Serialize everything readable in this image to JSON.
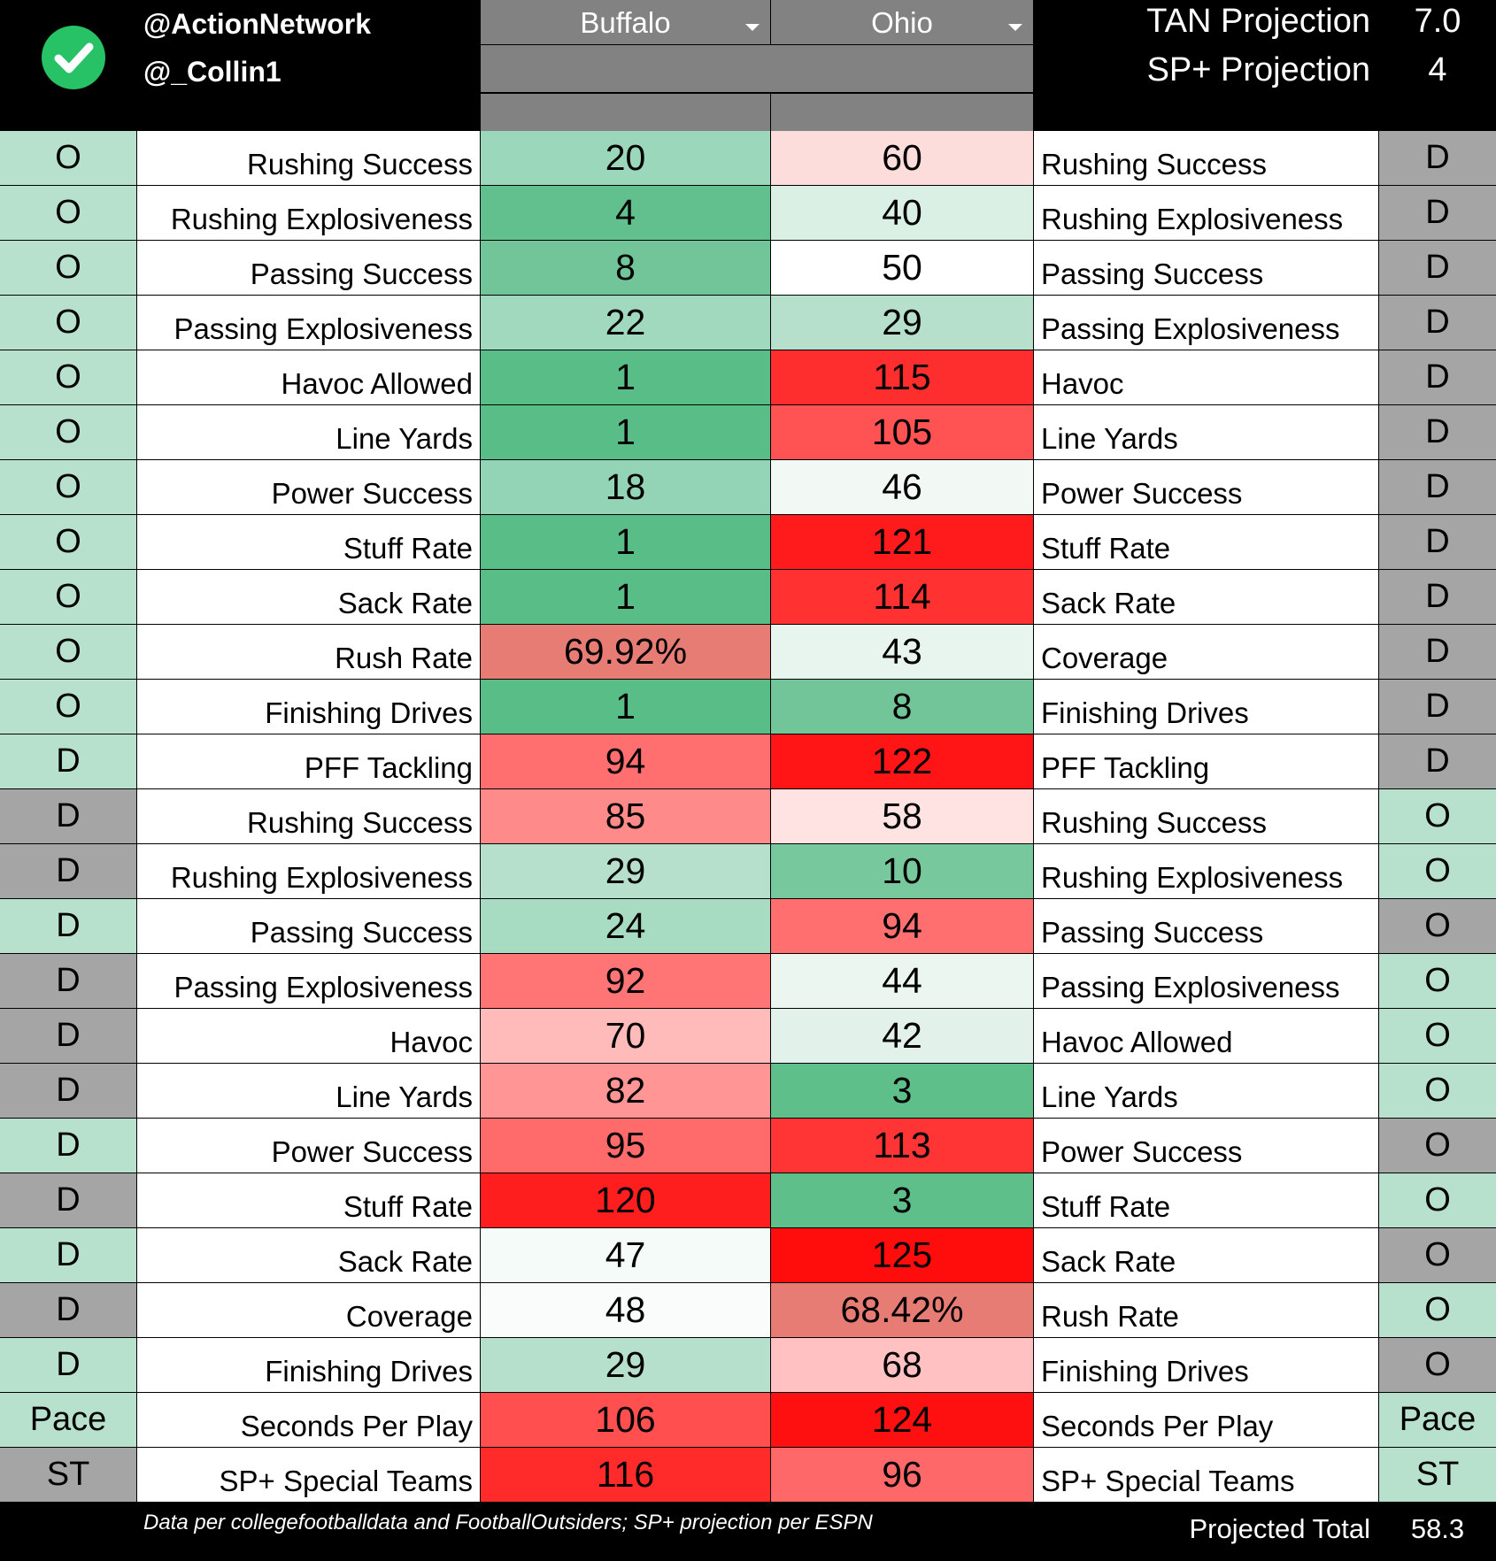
{
  "header": {
    "handle_primary": "@ActionNetwork",
    "handle_secondary": "@_Collin1",
    "team_left": "Buffalo",
    "team_right": "Ohio",
    "tan_label": "TAN Projection",
    "tan_value": "7.0",
    "sp_label": "SP+ Projection",
    "sp_value": "4"
  },
  "colors": {
    "light_green": "#b7e1cd",
    "side_gray": "#a5a5a5",
    "check_green": "#27c265",
    "header_gray": "#828282"
  },
  "rows": [
    {
      "side": "O",
      "side_color": "#b7e1cd",
      "left_label": "Rushing Success",
      "v1": "20",
      "v1_color": "#9bd7bb",
      "v2": "60",
      "v2_color": "#fddcdc",
      "right_label": "Rushing Success",
      "rside": "D",
      "rside_color": "#a5a5a5"
    },
    {
      "side": "O",
      "side_color": "#b7e1cd",
      "left_label": "Rushing Explosiveness",
      "v1": "4",
      "v1_color": "#62c08e",
      "v2": "40",
      "v2_color": "#dbf0e5",
      "right_label": "Rushing Explosiveness",
      "rside": "D",
      "rside_color": "#a5a5a5"
    },
    {
      "side": "O",
      "side_color": "#b7e1cd",
      "left_label": "Passing Success",
      "v1": "8",
      "v1_color": "#71c598",
      "v2": "50",
      "v2_color": "#ffffff",
      "right_label": "Passing Success",
      "rside": "D",
      "rside_color": "#a5a5a5"
    },
    {
      "side": "O",
      "side_color": "#b7e1cd",
      "left_label": "Passing Explosiveness",
      "v1": "22",
      "v1_color": "#a1d9bf",
      "v2": "29",
      "v2_color": "#b6e0cb",
      "right_label": "Passing Explosiveness",
      "rside": "D",
      "rside_color": "#a5a5a5"
    },
    {
      "side": "O",
      "side_color": "#b7e1cd",
      "left_label": "Havoc Allowed",
      "v1": "1",
      "v1_color": "#59bd88",
      "v2": "115",
      "v2_color": "#ff2e2e",
      "right_label": "Havoc",
      "rside": "D",
      "rside_color": "#a5a5a5"
    },
    {
      "side": "O",
      "side_color": "#b7e1cd",
      "left_label": "Line Yards",
      "v1": "1",
      "v1_color": "#59bd88",
      "v2": "105",
      "v2_color": "#ff5252",
      "right_label": "Line Yards",
      "rside": "D",
      "rside_color": "#a5a5a5"
    },
    {
      "side": "O",
      "side_color": "#b7e1cd",
      "left_label": "Power Success",
      "v1": "18",
      "v1_color": "#94d4b6",
      "v2": "46",
      "v2_color": "#f2f9f5",
      "right_label": "Power Success",
      "rside": "D",
      "rside_color": "#a5a5a5"
    },
    {
      "side": "O",
      "side_color": "#b7e1cd",
      "left_label": "Stuff Rate",
      "v1": "1",
      "v1_color": "#59bd88",
      "v2": "121",
      "v2_color": "#ff1b1b",
      "right_label": "Stuff Rate",
      "rside": "D",
      "rside_color": "#a5a5a5"
    },
    {
      "side": "O",
      "side_color": "#b7e1cd",
      "left_label": "Sack Rate",
      "v1": "1",
      "v1_color": "#59bd88",
      "v2": "114",
      "v2_color": "#ff3131",
      "right_label": "Sack Rate",
      "rside": "D",
      "rside_color": "#a5a5a5"
    },
    {
      "side": "O",
      "side_color": "#b7e1cd",
      "left_label": "Rush Rate",
      "v1": "69.92%",
      "v1_color": "#e67c73",
      "v2": "43",
      "v2_color": "#e8f5ee",
      "right_label": "Coverage",
      "rside": "D",
      "rside_color": "#a5a5a5"
    },
    {
      "side": "O",
      "side_color": "#b7e1cd",
      "left_label": "Finishing Drives",
      "v1": "1",
      "v1_color": "#59bd88",
      "v2": "8",
      "v2_color": "#71c598",
      "right_label": "Finishing Drives",
      "rside": "D",
      "rside_color": "#a5a5a5"
    },
    {
      "side": "D",
      "side_color": "#b7e1cd",
      "left_label": "PFF Tackling",
      "v1": "94",
      "v1_color": "#ff6f6f",
      "v2": "122",
      "v2_color": "#ff1515",
      "right_label": "PFF Tackling",
      "rside": "D",
      "rside_color": "#a5a5a5"
    },
    {
      "side": "D",
      "side_color": "#a5a5a5",
      "left_label": "Rushing Success",
      "v1": "85",
      "v1_color": "#ff8a8a",
      "v2": "58",
      "v2_color": "#ffe3e3",
      "right_label": "Rushing Success",
      "rside": "O",
      "rside_color": "#b7e1cd"
    },
    {
      "side": "D",
      "side_color": "#a5a5a5",
      "left_label": "Rushing Explosiveness",
      "v1": "29",
      "v1_color": "#b6e0cb",
      "v2": "10",
      "v2_color": "#78c89d",
      "right_label": "Rushing Explosiveness",
      "rside": "O",
      "rside_color": "#b7e1cd"
    },
    {
      "side": "D",
      "side_color": "#b7e1cd",
      "left_label": "Passing Success",
      "v1": "24",
      "v1_color": "#a7dbc2",
      "v2": "94",
      "v2_color": "#ff6f6f",
      "right_label": "Passing Success",
      "rside": "O",
      "rside_color": "#a5a5a5"
    },
    {
      "side": "D",
      "side_color": "#a5a5a5",
      "left_label": "Passing Explosiveness",
      "v1": "92",
      "v1_color": "#ff7575",
      "v2": "44",
      "v2_color": "#ebf6f0",
      "right_label": "Passing Explosiveness",
      "rside": "O",
      "rside_color": "#b7e1cd"
    },
    {
      "side": "D",
      "side_color": "#a5a5a5",
      "left_label": "Havoc",
      "v1": "70",
      "v1_color": "#ffbaba",
      "v2": "42",
      "v2_color": "#e2f2ea",
      "right_label": "Havoc Allowed",
      "rside": "O",
      "rside_color": "#b7e1cd"
    },
    {
      "side": "D",
      "side_color": "#a5a5a5",
      "left_label": "Line Yards",
      "v1": "82",
      "v1_color": "#ff9595",
      "v2": "3",
      "v2_color": "#5ebf8b",
      "right_label": "Line Yards",
      "rside": "O",
      "rside_color": "#b7e1cd"
    },
    {
      "side": "D",
      "side_color": "#b7e1cd",
      "left_label": "Power Success",
      "v1": "95",
      "v1_color": "#ff6b6b",
      "v2": "113",
      "v2_color": "#ff3535",
      "right_label": "Power Success",
      "rside": "O",
      "rside_color": "#a5a5a5"
    },
    {
      "side": "D",
      "side_color": "#a5a5a5",
      "left_label": "Stuff Rate",
      "v1": "120",
      "v1_color": "#ff1e1e",
      "v2": "3",
      "v2_color": "#5ebf8b",
      "right_label": "Stuff Rate",
      "rside": "O",
      "rside_color": "#b7e1cd"
    },
    {
      "side": "D",
      "side_color": "#b7e1cd",
      "left_label": "Sack Rate",
      "v1": "47",
      "v1_color": "#f5fbf8",
      "v2": "125",
      "v2_color": "#ff0d0d",
      "right_label": "Sack Rate",
      "rside": "O",
      "rside_color": "#a5a5a5"
    },
    {
      "side": "D",
      "side_color": "#a5a5a5",
      "left_label": "Coverage",
      "v1": "48",
      "v1_color": "#f9fcfa",
      "v2": "68.42%",
      "v2_color": "#e67c73",
      "right_label": "Rush Rate",
      "rside": "O",
      "rside_color": "#b7e1cd"
    },
    {
      "side": "D",
      "side_color": "#b7e1cd",
      "left_label": "Finishing Drives",
      "v1": "29",
      "v1_color": "#b6e0cb",
      "v2": "68",
      "v2_color": "#ffc1c1",
      "right_label": "Finishing Drives",
      "rside": "O",
      "rside_color": "#a5a5a5"
    },
    {
      "side": "Pace",
      "side_color": "#b7e1cd",
      "left_label": "Seconds Per Play",
      "v1": "106",
      "v1_color": "#ff4f4f",
      "v2": "124",
      "v2_color": "#ff1010",
      "right_label": "Seconds Per Play",
      "rside": "Pace",
      "rside_color": "#b7e1cd"
    },
    {
      "side": "ST",
      "side_color": "#a5a5a5",
      "left_label": "SP+ Special Teams",
      "v1": "116",
      "v1_color": "#ff2b2b",
      "v2": "96",
      "v2_color": "#ff6868",
      "right_label": "SP+ Special Teams",
      "rside": "ST",
      "rside_color": "#b7e1cd"
    }
  ],
  "footer": {
    "note": "Data per collegefootballdata and FootballOutsiders; SP+ projection per ESPN",
    "total_label": "Projected Total",
    "total_value": "58.3"
  }
}
